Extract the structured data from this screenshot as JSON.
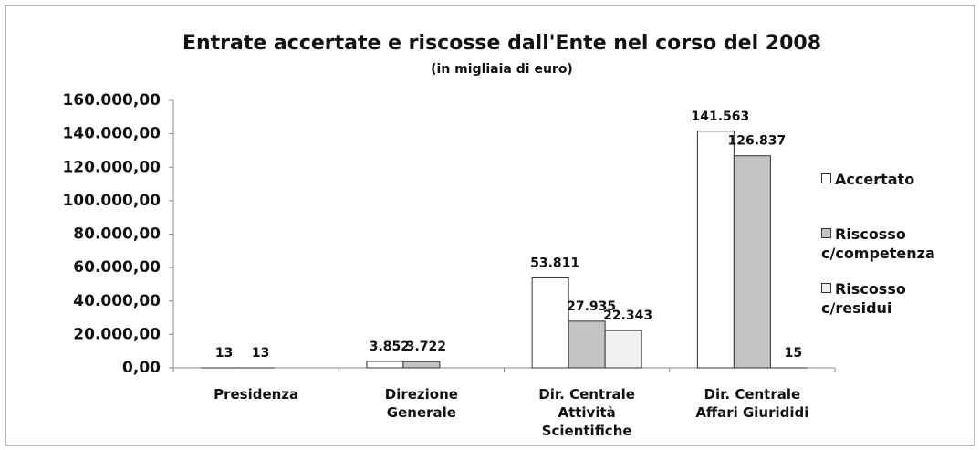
{
  "chart_data": {
    "type": "bar",
    "title": "Entrate accertate e riscosse dall'Ente nel corso del 2008",
    "subtitle": "(in migliaia di euro)",
    "categories": [
      "Presidenza",
      "Direzione Generale",
      "Dir. Centrale Attività Scientifiche",
      "Dir. Centrale Affari Giurididi"
    ],
    "series": [
      {
        "name": "Accertato",
        "color": "#ffffff",
        "values": [
          13,
          3852,
          53811,
          141563
        ],
        "value_labels": [
          "13",
          "3.852",
          "53.811",
          "141.563"
        ]
      },
      {
        "name": "Riscosso c/competenza",
        "color": "#c4c4c4",
        "values": [
          13,
          3722,
          27935,
          126837
        ],
        "value_labels": [
          "13",
          "3.722",
          "27.935",
          "126.837"
        ]
      },
      {
        "name": "Riscosso c/residui",
        "color": "#f0f0f0",
        "values": [
          null,
          null,
          22343,
          15
        ],
        "value_labels": [
          null,
          null,
          "22.343",
          "15"
        ]
      }
    ],
    "ylim": [
      0,
      160000
    ],
    "yticks": [
      {
        "value": 0,
        "label": "0,00"
      },
      {
        "value": 20000,
        "label": "20.000,00"
      },
      {
        "value": 40000,
        "label": "40.000,00"
      },
      {
        "value": 60000,
        "label": "60.000,00"
      },
      {
        "value": 80000,
        "label": "80.000,00"
      },
      {
        "value": 100000,
        "label": "100.000,00"
      },
      {
        "value": 120000,
        "label": "120.000,00"
      },
      {
        "value": 140000,
        "label": "140.000,00"
      },
      {
        "value": 160000,
        "label": "160.000,00"
      }
    ],
    "legend": "right"
  }
}
